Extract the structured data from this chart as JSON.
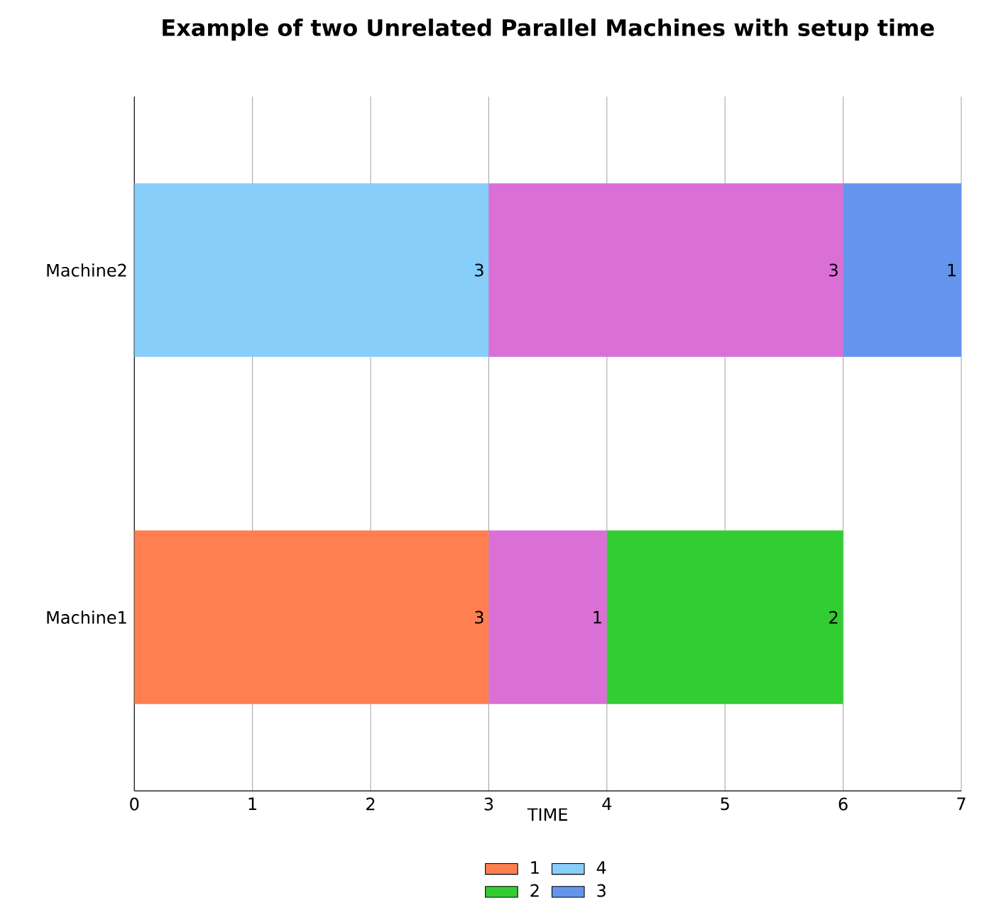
{
  "chart_data": {
    "type": "bar",
    "orientation": "horizontal",
    "stacked": true,
    "title": "Example of  two Unrelated Parallel Machines with setup time",
    "xlabel": "TIME",
    "categories": [
      "Machine2",
      "Machine1"
    ],
    "series": [
      {
        "name": "1",
        "color": "#ff7f50",
        "values": [
          null,
          3
        ]
      },
      {
        "name": "4",
        "color": "#87cefa",
        "values": [
          3,
          null
        ]
      },
      {
        "color": "#da70d6",
        "values": [
          3,
          1
        ]
      },
      {
        "name": "2",
        "color": "#32cd32",
        "values": [
          null,
          2
        ]
      },
      {
        "name": "3",
        "color": "#6495ed",
        "values": [
          1,
          null
        ]
      }
    ],
    "xlim": [
      0,
      7
    ],
    "xticks": [
      0,
      1,
      2,
      3,
      4,
      5,
      6,
      7
    ],
    "grid": "x",
    "legend": "bottom",
    "data_labels": true
  }
}
